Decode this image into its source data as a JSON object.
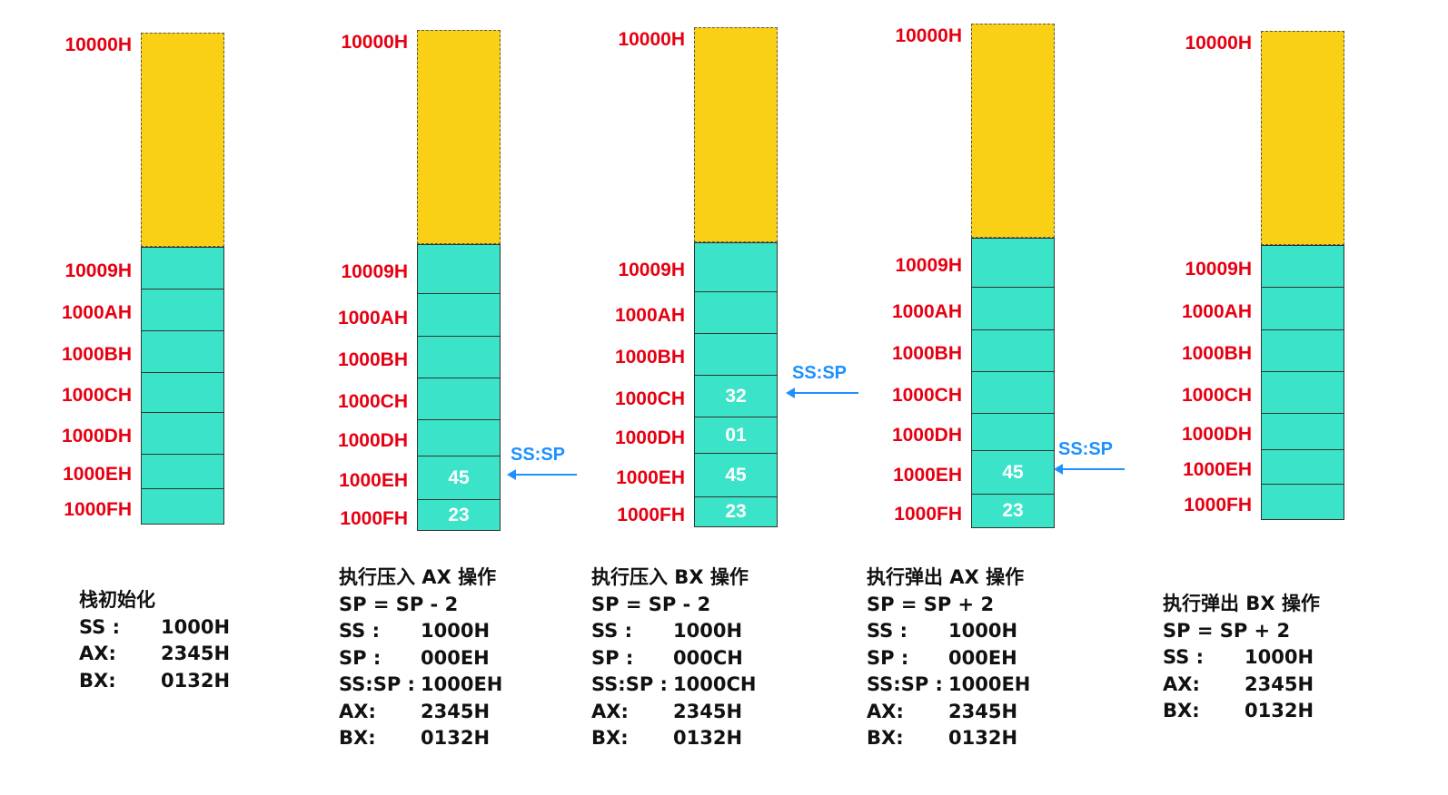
{
  "stacks": [
    {
      "top_address": "10000H",
      "cells": [
        {
          "address": "10009H",
          "value": ""
        },
        {
          "address": "1000AH",
          "value": ""
        },
        {
          "address": "1000BH",
          "value": ""
        },
        {
          "address": "1000CH",
          "value": ""
        },
        {
          "address": "1000DH",
          "value": ""
        },
        {
          "address": "1000EH",
          "value": ""
        },
        {
          "address": "1000FH",
          "value": ""
        }
      ],
      "pointer": null,
      "caption": {
        "title": "栈初始化",
        "formula": "",
        "registers": [
          {
            "label": "SS :",
            "value": "1000H"
          },
          {
            "label": "AX:",
            "value": "2345H"
          },
          {
            "label": "BX:",
            "value": "0132H"
          }
        ]
      }
    },
    {
      "top_address": "10000H",
      "cells": [
        {
          "address": "10009H",
          "value": ""
        },
        {
          "address": "1000AH",
          "value": ""
        },
        {
          "address": "1000BH",
          "value": ""
        },
        {
          "address": "1000CH",
          "value": ""
        },
        {
          "address": "1000DH",
          "value": ""
        },
        {
          "address": "1000EH",
          "value": "45"
        },
        {
          "address": "1000FH",
          "value": "23"
        }
      ],
      "pointer": {
        "label": "SS:SP",
        "cell": "1000EH"
      },
      "caption": {
        "title": "执行压入 AX 操作",
        "formula": "SP = SP - 2",
        "registers": [
          {
            "label": "SS :",
            "value": "1000H"
          },
          {
            "label": "SP :",
            "value": "000EH"
          },
          {
            "label": "SS:SP :",
            "value": "1000EH"
          },
          {
            "label": "AX:",
            "value": "2345H"
          },
          {
            "label": "BX:",
            "value": "0132H"
          }
        ]
      }
    },
    {
      "top_address": "10000H",
      "cells": [
        {
          "address": "10009H",
          "value": ""
        },
        {
          "address": "1000AH",
          "value": ""
        },
        {
          "address": "1000BH",
          "value": ""
        },
        {
          "address": "1000CH",
          "value": "32"
        },
        {
          "address": "1000DH",
          "value": "01"
        },
        {
          "address": "1000EH",
          "value": "45"
        },
        {
          "address": "1000FH",
          "value": "23"
        }
      ],
      "pointer": {
        "label": "SS:SP",
        "cell": "1000CH"
      },
      "caption": {
        "title": "执行压入 BX 操作",
        "formula": "SP = SP - 2",
        "registers": [
          {
            "label": "SS :",
            "value": "1000H"
          },
          {
            "label": "SP :",
            "value": "000CH"
          },
          {
            "label": "SS:SP :",
            "value": "1000CH"
          },
          {
            "label": "AX:",
            "value": "2345H"
          },
          {
            "label": "BX:",
            "value": "0132H"
          }
        ]
      }
    },
    {
      "top_address": "10000H",
      "cells": [
        {
          "address": "10009H",
          "value": ""
        },
        {
          "address": "1000AH",
          "value": ""
        },
        {
          "address": "1000BH",
          "value": ""
        },
        {
          "address": "1000CH",
          "value": ""
        },
        {
          "address": "1000DH",
          "value": ""
        },
        {
          "address": "1000EH",
          "value": "45"
        },
        {
          "address": "1000FH",
          "value": "23"
        }
      ],
      "pointer": {
        "label": "SS:SP",
        "cell": "1000EH"
      },
      "caption": {
        "title": "执行弹出 AX 操作",
        "formula": "SP = SP + 2",
        "registers": [
          {
            "label": "SS :",
            "value": "1000H"
          },
          {
            "label": "SP :",
            "value": "000EH"
          },
          {
            "label": "SS:SP :",
            "value": "1000EH"
          },
          {
            "label": "AX:",
            "value": "2345H"
          },
          {
            "label": "BX:",
            "value": "0132H"
          }
        ]
      }
    },
    {
      "top_address": "10000H",
      "cells": [
        {
          "address": "10009H",
          "value": ""
        },
        {
          "address": "1000AH",
          "value": ""
        },
        {
          "address": "1000BH",
          "value": ""
        },
        {
          "address": "1000CH",
          "value": ""
        },
        {
          "address": "1000DH",
          "value": ""
        },
        {
          "address": "1000EH",
          "value": ""
        },
        {
          "address": "1000FH",
          "value": ""
        }
      ],
      "pointer": null,
      "caption": {
        "title": "执行弹出 BX 操作",
        "formula": "SP = SP + 2",
        "registers": [
          {
            "label": "SS :",
            "value": "1000H"
          },
          {
            "label": "AX:",
            "value": "2345H"
          },
          {
            "label": "BX:",
            "value": "0132H"
          }
        ]
      }
    }
  ],
  "colors": {
    "address_text": "#e60012",
    "unused_region": "#fad016",
    "stack_cell": "#3be3c8",
    "pointer": "#1e90ff",
    "cell_value_text": "#ffffff"
  }
}
